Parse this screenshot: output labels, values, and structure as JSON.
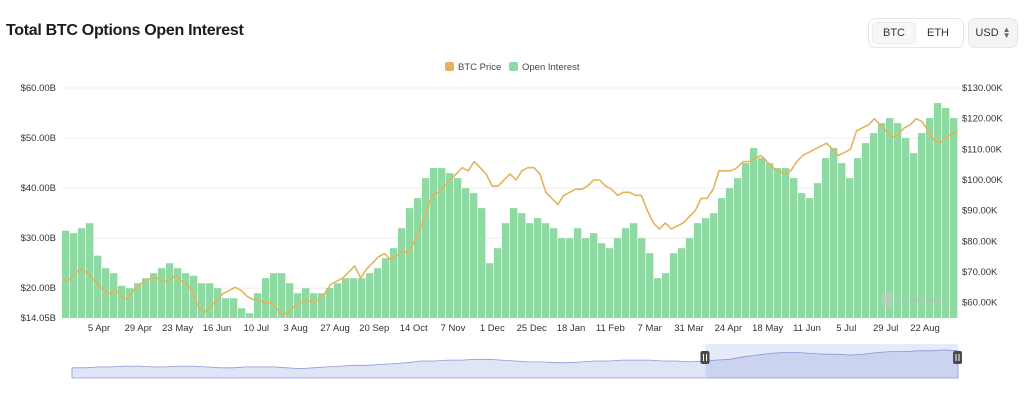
{
  "header": {
    "title": "Total BTC Options Open Interest",
    "asset_tabs": [
      {
        "label": "BTC",
        "active": true
      },
      {
        "label": "ETH",
        "active": false
      }
    ],
    "currency": "USD"
  },
  "watermark": "coinglass",
  "colors": {
    "open_interest": "#8fd9a3",
    "btc_price": "#e3b45a",
    "navigator": "#dfe4f6",
    "navigator_line": "#8f9bd6"
  },
  "chart_data": {
    "type": "bar",
    "title": "Total BTC Options Open Interest",
    "legend": {
      "position": "top-center",
      "items": [
        {
          "label": "BTC Price",
          "color": "#e3b45a"
        },
        {
          "label": "Open Interest",
          "color": "#8fd9a3"
        }
      ]
    },
    "x_tick_labels": [
      "5 Apr",
      "29 Apr",
      "23 May",
      "16 Jun",
      "10 Jul",
      "3 Aug",
      "27 Aug",
      "20 Sep",
      "14 Oct",
      "7 Nov",
      "1 Dec",
      "25 Dec",
      "18 Jan",
      "11 Feb",
      "7 Mar",
      "31 Mar",
      "24 Apr",
      "18 May",
      "11 Jun",
      "5 Jul",
      "29 Jul",
      "22 Aug"
    ],
    "y_left": {
      "ticks": [
        "$14.05B",
        "$20.00B",
        "$30.00B",
        "$40.00B",
        "$50.00B",
        "$60.00B"
      ],
      "tick_values": [
        14.05,
        20,
        30,
        40,
        50,
        60
      ],
      "range": [
        14.05,
        60
      ],
      "unit": "B USD"
    },
    "y_right": {
      "ticks": [
        "$60.00K",
        "$70.00K",
        "$80.00K",
        "$90.00K",
        "$100.00K",
        "$110.00K",
        "$120.00K",
        "$130.00K"
      ],
      "tick_values": [
        60,
        70,
        80,
        90,
        100,
        110,
        120,
        130
      ],
      "range": [
        55,
        130
      ],
      "unit": "K USD"
    },
    "grid": true,
    "series": [
      {
        "name": "Open Interest",
        "type": "bar",
        "axis": "left",
        "values": [
          31.5,
          31,
          32,
          33,
          26.5,
          24,
          23,
          20.5,
          20,
          21,
          22,
          23,
          24,
          25,
          24,
          23,
          22.5,
          21,
          21,
          20,
          18,
          18,
          16,
          15,
          19,
          22,
          23,
          23,
          21,
          19,
          20,
          19,
          19,
          20,
          21,
          22,
          22,
          22,
          23,
          24,
          26,
          28,
          32,
          36,
          38,
          42,
          44,
          44,
          43,
          42,
          40,
          39,
          36,
          25,
          28,
          33,
          36,
          35,
          33,
          34,
          33,
          32,
          30,
          30,
          32,
          30,
          31,
          29,
          28,
          30,
          32,
          33,
          30,
          27,
          22,
          23,
          27,
          28,
          30,
          33,
          34,
          35,
          38,
          40,
          42,
          45,
          48,
          46,
          45,
          44,
          44,
          42,
          39,
          38,
          41,
          46,
          48,
          45,
          42,
          46,
          49,
          51,
          53,
          54,
          53,
          50,
          47,
          51,
          54,
          57,
          56,
          54
        ]
      },
      {
        "name": "BTC Price",
        "type": "line",
        "axis": "right",
        "values": [
          68,
          67,
          69,
          71,
          70,
          68,
          66,
          64,
          63,
          64,
          62,
          61,
          64,
          66,
          67,
          68,
          68,
          67,
          67,
          69,
          67,
          66,
          63,
          58,
          57,
          59,
          61,
          63,
          64,
          65,
          64,
          62,
          61,
          61,
          60,
          60,
          58,
          56,
          57,
          59,
          60,
          61,
          60,
          61,
          63,
          66,
          67,
          68,
          70,
          72,
          68,
          71,
          73,
          75,
          76,
          74,
          75,
          77,
          76,
          80,
          84,
          90,
          95,
          96,
          98,
          100,
          102,
          104,
          103,
          106,
          104,
          102,
          98,
          98,
          100,
          102,
          100,
          103,
          104,
          104,
          102,
          96,
          94,
          92,
          95,
          96,
          97,
          97,
          98,
          100,
          100,
          98,
          97,
          95,
          96,
          96,
          95,
          95,
          90,
          86,
          84,
          86,
          84,
          85,
          86,
          88,
          90,
          94,
          94,
          97,
          103,
          103,
          103,
          104,
          106,
          106,
          107,
          108,
          106,
          104,
          103,
          102,
          103,
          106,
          108,
          109,
          110,
          111,
          112,
          110,
          108,
          109,
          110,
          116,
          117,
          118,
          120,
          118,
          116,
          114,
          115,
          117,
          118,
          120,
          119,
          116,
          113,
          112,
          114,
          115,
          116
        ]
      }
    ]
  },
  "navigator": {
    "values": [
      42,
      42,
      43,
      43,
      44,
      44,
      43,
      43,
      44,
      44,
      43,
      42,
      42,
      43,
      43,
      43,
      42,
      41,
      42,
      43,
      44,
      45,
      45,
      46,
      47,
      48,
      50,
      50,
      51,
      51,
      52,
      52,
      51,
      50,
      49,
      49,
      48,
      48,
      49,
      50,
      50,
      51,
      51,
      51,
      50,
      50,
      49,
      50,
      51,
      52,
      55,
      57,
      59,
      60,
      60,
      59,
      58,
      58,
      57,
      58,
      60,
      61,
      61,
      62,
      62,
      63,
      62
    ],
    "selection_start": 0.715,
    "selection_end": 1.0
  }
}
